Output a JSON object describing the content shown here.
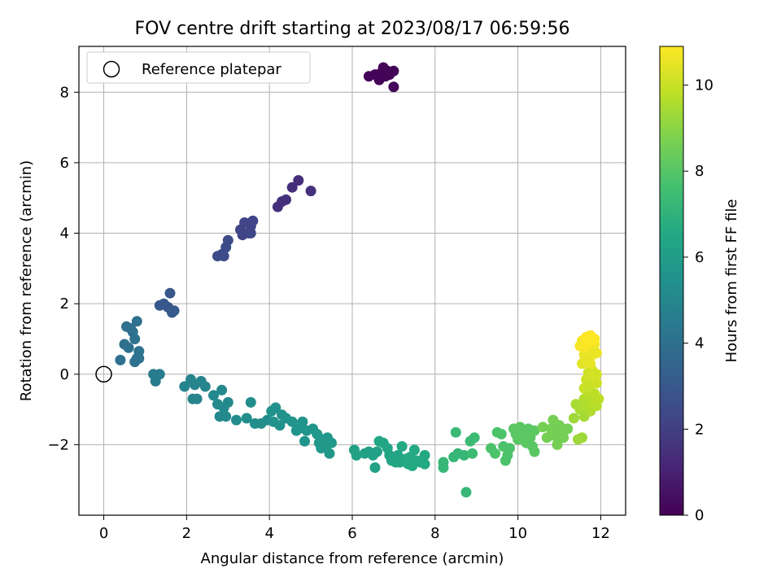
{
  "chart_data": {
    "type": "scatter",
    "title": "FOV centre drift starting at 2023/08/17 06:59:56",
    "xlabel": "Angular distance from reference (arcmin)",
    "ylabel": "Rotation from reference (arcmin)",
    "xlim": [
      -0.6,
      12.6
    ],
    "ylim": [
      -4.0,
      9.3
    ],
    "x_ticks": [
      0,
      2,
      4,
      6,
      8,
      10,
      12
    ],
    "y_ticks": [
      -2,
      0,
      2,
      4,
      6,
      8
    ],
    "x_tick_labels": [
      "0",
      "2",
      "4",
      "6",
      "8",
      "10",
      "12"
    ],
    "y_tick_labels": [
      "−2",
      "0",
      "2",
      "4",
      "6",
      "8"
    ],
    "grid": true,
    "colormap": "viridis",
    "legend": {
      "position": "top-left",
      "entries": [
        "Reference platepar"
      ]
    },
    "reference_point": {
      "x": 0,
      "y": 0
    },
    "colorbar": {
      "label": "Hours from first FF file",
      "range": [
        0,
        10.9
      ],
      "ticks": [
        0,
        2,
        4,
        6,
        8,
        10
      ],
      "tick_labels": [
        "0",
        "2",
        "4",
        "6",
        "8",
        "10"
      ]
    },
    "points": [
      {
        "x": 6.4,
        "y": 8.45,
        "c": 0.1
      },
      {
        "x": 6.55,
        "y": 8.5,
        "c": 0.1
      },
      {
        "x": 6.65,
        "y": 8.35,
        "c": 0.1
      },
      {
        "x": 6.7,
        "y": 8.55,
        "c": 0.1
      },
      {
        "x": 6.75,
        "y": 8.7,
        "c": 0.1
      },
      {
        "x": 6.8,
        "y": 8.45,
        "c": 0.1
      },
      {
        "x": 6.85,
        "y": 8.6,
        "c": 0.1
      },
      {
        "x": 6.9,
        "y": 8.5,
        "c": 0.1
      },
      {
        "x": 7.0,
        "y": 8.6,
        "c": 0.1
      },
      {
        "x": 7.0,
        "y": 8.15,
        "c": 0.2
      },
      {
        "x": 4.2,
        "y": 4.75,
        "c": 1.5
      },
      {
        "x": 4.3,
        "y": 4.9,
        "c": 1.5
      },
      {
        "x": 4.4,
        "y": 4.95,
        "c": 1.5
      },
      {
        "x": 4.55,
        "y": 5.3,
        "c": 1.4
      },
      {
        "x": 4.7,
        "y": 5.5,
        "c": 1.4
      },
      {
        "x": 5.0,
        "y": 5.2,
        "c": 1.5
      },
      {
        "x": 3.3,
        "y": 4.1,
        "c": 2.2
      },
      {
        "x": 3.35,
        "y": 3.95,
        "c": 2.2
      },
      {
        "x": 3.4,
        "y": 4.3,
        "c": 2.2
      },
      {
        "x": 3.5,
        "y": 4.0,
        "c": 2.2
      },
      {
        "x": 3.55,
        "y": 4.2,
        "c": 2.2
      },
      {
        "x": 3.6,
        "y": 4.35,
        "c": 2.2
      },
      {
        "x": 3.55,
        "y": 4.0,
        "c": 2.3
      },
      {
        "x": 2.75,
        "y": 3.35,
        "c": 2.5
      },
      {
        "x": 2.85,
        "y": 3.4,
        "c": 2.5
      },
      {
        "x": 2.9,
        "y": 3.35,
        "c": 2.5
      },
      {
        "x": 2.95,
        "y": 3.6,
        "c": 2.5
      },
      {
        "x": 3.0,
        "y": 3.8,
        "c": 2.5
      },
      {
        "x": 1.35,
        "y": 1.95,
        "c": 3.0
      },
      {
        "x": 1.45,
        "y": 2.0,
        "c": 3.0
      },
      {
        "x": 1.55,
        "y": 1.9,
        "c": 3.0
      },
      {
        "x": 1.6,
        "y": 2.3,
        "c": 3.0
      },
      {
        "x": 1.65,
        "y": 1.75,
        "c": 3.1
      },
      {
        "x": 1.7,
        "y": 1.8,
        "c": 3.1
      },
      {
        "x": 0.4,
        "y": 0.4,
        "c": 4.0
      },
      {
        "x": 0.5,
        "y": 0.85,
        "c": 4.0
      },
      {
        "x": 0.55,
        "y": 1.35,
        "c": 4.0
      },
      {
        "x": 0.6,
        "y": 0.75,
        "c": 4.0
      },
      {
        "x": 0.65,
        "y": 1.3,
        "c": 4.0
      },
      {
        "x": 0.7,
        "y": 1.2,
        "c": 4.0
      },
      {
        "x": 0.75,
        "y": 0.35,
        "c": 4.1
      },
      {
        "x": 0.75,
        "y": 1.0,
        "c": 4.1
      },
      {
        "x": 0.8,
        "y": 0.45,
        "c": 4.1
      },
      {
        "x": 0.8,
        "y": 1.5,
        "c": 4.0
      },
      {
        "x": 0.85,
        "y": 0.65,
        "c": 4.1
      },
      {
        "x": 0.85,
        "y": 0.45,
        "c": 4.1
      },
      {
        "x": 1.2,
        "y": 0.0,
        "c": 4.5
      },
      {
        "x": 1.25,
        "y": -0.2,
        "c": 4.5
      },
      {
        "x": 1.35,
        "y": 0.0,
        "c": 4.5
      },
      {
        "x": 1.95,
        "y": -0.35,
        "c": 4.9
      },
      {
        "x": 2.1,
        "y": -0.15,
        "c": 4.9
      },
      {
        "x": 2.15,
        "y": -0.7,
        "c": 4.9
      },
      {
        "x": 2.2,
        "y": -0.3,
        "c": 4.9
      },
      {
        "x": 2.25,
        "y": -0.7,
        "c": 4.9
      },
      {
        "x": 2.35,
        "y": -0.2,
        "c": 4.9
      },
      {
        "x": 2.45,
        "y": -0.35,
        "c": 4.9
      },
      {
        "x": 2.65,
        "y": -0.6,
        "c": 5.1
      },
      {
        "x": 2.75,
        "y": -0.85,
        "c": 5.1
      },
      {
        "x": 2.8,
        "y": -1.2,
        "c": 5.1
      },
      {
        "x": 2.85,
        "y": -0.45,
        "c": 5.1
      },
      {
        "x": 2.9,
        "y": -0.95,
        "c": 5.1
      },
      {
        "x": 2.95,
        "y": -1.2,
        "c": 5.1
      },
      {
        "x": 3.0,
        "y": -0.8,
        "c": 5.1
      },
      {
        "x": 3.2,
        "y": -1.3,
        "c": 5.3
      },
      {
        "x": 3.45,
        "y": -1.25,
        "c": 5.3
      },
      {
        "x": 3.55,
        "y": -0.8,
        "c": 5.3
      },
      {
        "x": 3.65,
        "y": -1.4,
        "c": 5.3
      },
      {
        "x": 3.8,
        "y": -1.4,
        "c": 5.3
      },
      {
        "x": 3.95,
        "y": -1.3,
        "c": 5.3
      },
      {
        "x": 4.05,
        "y": -1.05,
        "c": 5.5
      },
      {
        "x": 4.1,
        "y": -1.35,
        "c": 5.5
      },
      {
        "x": 4.15,
        "y": -0.95,
        "c": 5.5
      },
      {
        "x": 4.25,
        "y": -1.45,
        "c": 5.5
      },
      {
        "x": 4.3,
        "y": -1.15,
        "c": 5.5
      },
      {
        "x": 4.4,
        "y": -1.25,
        "c": 5.5
      },
      {
        "x": 4.55,
        "y": -1.35,
        "c": 5.6
      },
      {
        "x": 4.65,
        "y": -1.6,
        "c": 5.6
      },
      {
        "x": 4.7,
        "y": -1.55,
        "c": 5.6
      },
      {
        "x": 4.8,
        "y": -1.35,
        "c": 5.6
      },
      {
        "x": 4.85,
        "y": -1.9,
        "c": 5.6
      },
      {
        "x": 4.9,
        "y": -1.6,
        "c": 5.6
      },
      {
        "x": 5.05,
        "y": -1.55,
        "c": 5.6
      },
      {
        "x": 5.15,
        "y": -1.7,
        "c": 5.8
      },
      {
        "x": 5.2,
        "y": -1.95,
        "c": 5.8
      },
      {
        "x": 5.25,
        "y": -2.1,
        "c": 5.8
      },
      {
        "x": 5.3,
        "y": -1.85,
        "c": 5.8
      },
      {
        "x": 5.35,
        "y": -2.05,
        "c": 5.8
      },
      {
        "x": 5.4,
        "y": -1.8,
        "c": 5.8
      },
      {
        "x": 5.45,
        "y": -2.25,
        "c": 5.8
      },
      {
        "x": 5.5,
        "y": -1.95,
        "c": 5.8
      },
      {
        "x": 6.05,
        "y": -2.15,
        "c": 6.2
      },
      {
        "x": 6.1,
        "y": -2.3,
        "c": 6.2
      },
      {
        "x": 6.3,
        "y": -2.25,
        "c": 6.2
      },
      {
        "x": 6.4,
        "y": -2.2,
        "c": 6.2
      },
      {
        "x": 6.5,
        "y": -2.3,
        "c": 6.2
      },
      {
        "x": 6.55,
        "y": -2.65,
        "c": 6.2
      },
      {
        "x": 6.6,
        "y": -2.2,
        "c": 6.2
      },
      {
        "x": 6.65,
        "y": -1.9,
        "c": 6.4
      },
      {
        "x": 6.75,
        "y": -1.95,
        "c": 6.4
      },
      {
        "x": 6.85,
        "y": -2.1,
        "c": 6.4
      },
      {
        "x": 6.9,
        "y": -2.3,
        "c": 6.4
      },
      {
        "x": 6.95,
        "y": -2.45,
        "c": 6.4
      },
      {
        "x": 7.05,
        "y": -2.5,
        "c": 6.4
      },
      {
        "x": 7.1,
        "y": -2.3,
        "c": 6.4
      },
      {
        "x": 7.15,
        "y": -2.5,
        "c": 6.4
      },
      {
        "x": 7.2,
        "y": -2.05,
        "c": 6.6
      },
      {
        "x": 7.3,
        "y": -2.4,
        "c": 6.6
      },
      {
        "x": 7.35,
        "y": -2.55,
        "c": 6.6
      },
      {
        "x": 7.4,
        "y": -2.35,
        "c": 6.6
      },
      {
        "x": 7.45,
        "y": -2.6,
        "c": 6.6
      },
      {
        "x": 7.5,
        "y": -2.15,
        "c": 6.6
      },
      {
        "x": 7.55,
        "y": -2.45,
        "c": 6.6
      },
      {
        "x": 7.65,
        "y": -2.5,
        "c": 6.6
      },
      {
        "x": 7.75,
        "y": -2.3,
        "c": 6.6
      },
      {
        "x": 7.75,
        "y": -2.55,
        "c": 6.6
      },
      {
        "x": 8.2,
        "y": -2.5,
        "c": 7.2
      },
      {
        "x": 8.2,
        "y": -2.65,
        "c": 7.2
      },
      {
        "x": 8.45,
        "y": -2.35,
        "c": 7.2
      },
      {
        "x": 8.5,
        "y": -1.65,
        "c": 7.3
      },
      {
        "x": 8.55,
        "y": -2.25,
        "c": 7.2
      },
      {
        "x": 8.7,
        "y": -2.3,
        "c": 7.2
      },
      {
        "x": 8.75,
        "y": -3.35,
        "c": 7.2
      },
      {
        "x": 8.85,
        "y": -1.9,
        "c": 7.4
      },
      {
        "x": 8.9,
        "y": -2.25,
        "c": 7.4
      },
      {
        "x": 8.95,
        "y": -1.8,
        "c": 7.4
      },
      {
        "x": 9.35,
        "y": -2.1,
        "c": 7.8
      },
      {
        "x": 9.45,
        "y": -2.25,
        "c": 7.8
      },
      {
        "x": 9.5,
        "y": -1.65,
        "c": 7.8
      },
      {
        "x": 9.6,
        "y": -1.7,
        "c": 7.8
      },
      {
        "x": 9.65,
        "y": -2.05,
        "c": 7.8
      },
      {
        "x": 9.7,
        "y": -2.45,
        "c": 7.8
      },
      {
        "x": 9.75,
        "y": -2.3,
        "c": 7.8
      },
      {
        "x": 9.8,
        "y": -2.1,
        "c": 7.8
      },
      {
        "x": 9.9,
        "y": -1.55,
        "c": 8.1
      },
      {
        "x": 9.95,
        "y": -1.7,
        "c": 8.1
      },
      {
        "x": 10.0,
        "y": -1.85,
        "c": 8.1
      },
      {
        "x": 10.05,
        "y": -1.5,
        "c": 8.1
      },
      {
        "x": 10.1,
        "y": -1.6,
        "c": 8.1
      },
      {
        "x": 10.15,
        "y": -1.75,
        "c": 8.1
      },
      {
        "x": 10.2,
        "y": -1.95,
        "c": 8.1
      },
      {
        "x": 10.25,
        "y": -1.55,
        "c": 8.1
      },
      {
        "x": 10.3,
        "y": -1.8,
        "c": 8.1
      },
      {
        "x": 10.35,
        "y": -2.05,
        "c": 8.1
      },
      {
        "x": 10.4,
        "y": -1.6,
        "c": 8.1
      },
      {
        "x": 10.4,
        "y": -2.2,
        "c": 8.1
      },
      {
        "x": 10.6,
        "y": -1.5,
        "c": 8.6
      },
      {
        "x": 10.7,
        "y": -1.8,
        "c": 8.6
      },
      {
        "x": 10.8,
        "y": -1.55,
        "c": 8.6
      },
      {
        "x": 10.85,
        "y": -1.3,
        "c": 8.6
      },
      {
        "x": 10.9,
        "y": -1.75,
        "c": 8.6
      },
      {
        "x": 10.95,
        "y": -2.0,
        "c": 8.6
      },
      {
        "x": 11.0,
        "y": -1.45,
        "c": 8.6
      },
      {
        "x": 11.05,
        "y": -1.6,
        "c": 8.6
      },
      {
        "x": 11.1,
        "y": -1.8,
        "c": 8.6
      },
      {
        "x": 11.2,
        "y": -1.55,
        "c": 8.6
      },
      {
        "x": 11.35,
        "y": -1.25,
        "c": 9.3
      },
      {
        "x": 11.4,
        "y": -0.85,
        "c": 9.5
      },
      {
        "x": 11.45,
        "y": -1.85,
        "c": 9.3
      },
      {
        "x": 11.55,
        "y": -1.8,
        "c": 9.3
      },
      {
        "x": 11.5,
        "y": -1.0,
        "c": 9.5
      },
      {
        "x": 11.6,
        "y": -0.7,
        "c": 9.6
      },
      {
        "x": 11.6,
        "y": -1.2,
        "c": 9.4
      },
      {
        "x": 11.65,
        "y": -0.9,
        "c": 9.6
      },
      {
        "x": 11.7,
        "y": -0.6,
        "c": 9.7
      },
      {
        "x": 11.75,
        "y": -1.05,
        "c": 9.6
      },
      {
        "x": 11.8,
        "y": -0.8,
        "c": 9.7
      },
      {
        "x": 11.85,
        "y": -0.55,
        "c": 9.8
      },
      {
        "x": 11.9,
        "y": -0.9,
        "c": 9.7
      },
      {
        "x": 11.95,
        "y": -0.7,
        "c": 9.8
      },
      {
        "x": 11.6,
        "y": -0.4,
        "c": 10.0
      },
      {
        "x": 11.65,
        "y": -0.15,
        "c": 10.1
      },
      {
        "x": 11.7,
        "y": 0.05,
        "c": 10.1
      },
      {
        "x": 11.75,
        "y": -0.3,
        "c": 10.0
      },
      {
        "x": 11.8,
        "y": 0.1,
        "c": 10.2
      },
      {
        "x": 11.85,
        "y": -0.05,
        "c": 10.2
      },
      {
        "x": 11.9,
        "y": 0.0,
        "c": 10.2
      },
      {
        "x": 11.9,
        "y": -0.25,
        "c": 10.1
      },
      {
        "x": 11.55,
        "y": 0.3,
        "c": 10.4
      },
      {
        "x": 11.6,
        "y": 0.55,
        "c": 10.5
      },
      {
        "x": 11.65,
        "y": 0.4,
        "c": 10.5
      },
      {
        "x": 11.7,
        "y": 0.7,
        "c": 10.6
      },
      {
        "x": 11.75,
        "y": 0.3,
        "c": 10.5
      },
      {
        "x": 11.8,
        "y": 0.55,
        "c": 10.6
      },
      {
        "x": 11.85,
        "y": 0.85,
        "c": 10.7
      },
      {
        "x": 11.9,
        "y": 0.6,
        "c": 10.6
      },
      {
        "x": 11.5,
        "y": 0.8,
        "c": 10.8
      },
      {
        "x": 11.55,
        "y": 0.95,
        "c": 10.8
      },
      {
        "x": 11.6,
        "y": 0.75,
        "c": 10.8
      },
      {
        "x": 11.65,
        "y": 1.05,
        "c": 10.9
      },
      {
        "x": 11.7,
        "y": 0.9,
        "c": 10.9
      },
      {
        "x": 11.75,
        "y": 1.1,
        "c": 10.9
      },
      {
        "x": 11.8,
        "y": 0.95,
        "c": 10.9
      },
      {
        "x": 11.85,
        "y": 1.0,
        "c": 10.9
      }
    ]
  }
}
